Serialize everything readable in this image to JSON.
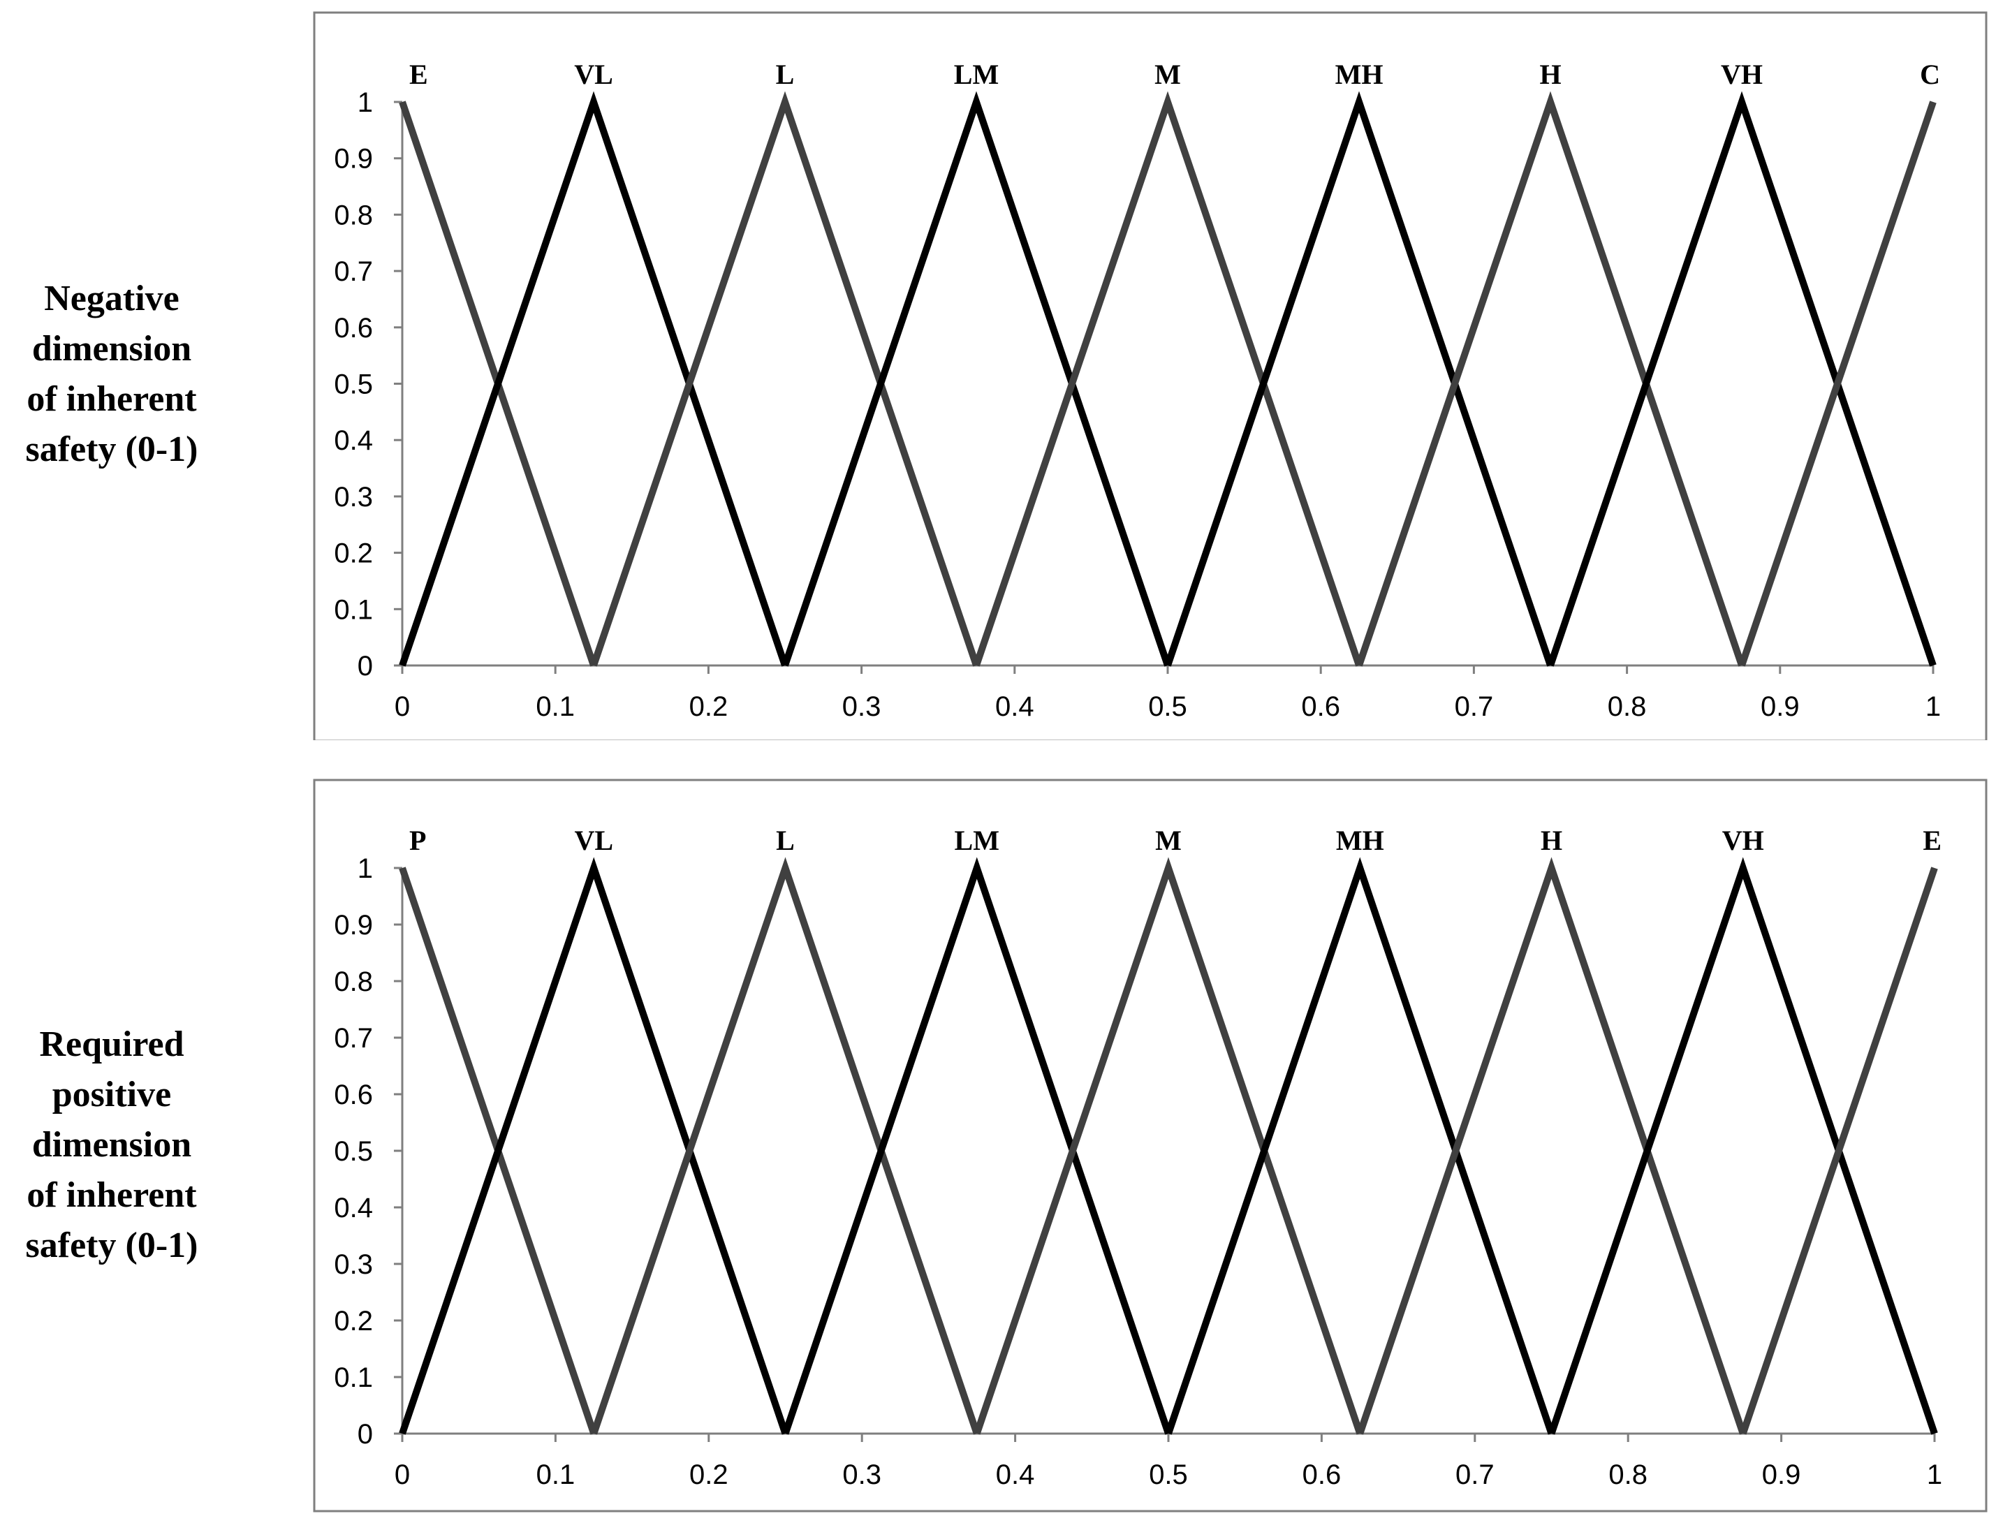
{
  "panels": [
    {
      "y_label_lines": [
        "Negative",
        "dimension",
        "of inherent",
        "safety (0-1)"
      ]
    },
    {
      "y_label_lines": [
        "Required",
        "positive",
        "dimension",
        "of inherent",
        "safety (0-1)"
      ]
    }
  ],
  "chart_data": [
    {
      "type": "line",
      "title": "",
      "xlabel": "",
      "ylabel": "Negative dimension of inherent safety (0-1)",
      "xlim": [
        0,
        1
      ],
      "ylim": [
        0,
        1
      ],
      "x_ticks": [
        "0",
        "0.1",
        "0.2",
        "0.3",
        "0.4",
        "0.5",
        "0.6",
        "0.7",
        "0.8",
        "0.9",
        "1"
      ],
      "x_tick_values": [
        0,
        0.1,
        0.2,
        0.3,
        0.4,
        0.5,
        0.6,
        0.7,
        0.8,
        0.9,
        1
      ],
      "y_ticks": [
        "0",
        "0.1",
        "0.2",
        "0.3",
        "0.4",
        "0.5",
        "0.6",
        "0.7",
        "0.8",
        "0.9",
        "1"
      ],
      "y_tick_values": [
        0,
        0.1,
        0.2,
        0.3,
        0.4,
        0.5,
        0.6,
        0.7,
        0.8,
        0.9,
        1
      ],
      "grid": false,
      "legend": "none",
      "series": [
        {
          "label": "E",
          "color": "#404040",
          "x": [
            0,
            0.125
          ],
          "y": [
            1,
            0
          ]
        },
        {
          "label": "VL",
          "color": "#000000",
          "x": [
            0,
            0.125,
            0.25
          ],
          "y": [
            0,
            1,
            0
          ]
        },
        {
          "label": "L",
          "color": "#404040",
          "x": [
            0.125,
            0.25,
            0.375
          ],
          "y": [
            0,
            1,
            0
          ]
        },
        {
          "label": "LM",
          "color": "#000000",
          "x": [
            0.25,
            0.375,
            0.5
          ],
          "y": [
            0,
            1,
            0
          ]
        },
        {
          "label": "M",
          "color": "#404040",
          "x": [
            0.375,
            0.5,
            0.625
          ],
          "y": [
            0,
            1,
            0
          ]
        },
        {
          "label": "MH",
          "color": "#000000",
          "x": [
            0.5,
            0.625,
            0.75
          ],
          "y": [
            0,
            1,
            0
          ]
        },
        {
          "label": "H",
          "color": "#404040",
          "x": [
            0.625,
            0.75,
            0.875
          ],
          "y": [
            0,
            1,
            0
          ]
        },
        {
          "label": "VH",
          "color": "#000000",
          "x": [
            0.75,
            0.875,
            1
          ],
          "y": [
            0,
            1,
            0
          ]
        },
        {
          "label": "C",
          "color": "#404040",
          "x": [
            0.875,
            1
          ],
          "y": [
            0,
            1
          ]
        }
      ]
    },
    {
      "type": "line",
      "title": "",
      "xlabel": "",
      "ylabel": "Required positive dimension of inherent safety (0-1)",
      "xlim": [
        0,
        1
      ],
      "ylim": [
        0,
        1
      ],
      "x_ticks": [
        "0",
        "0.1",
        "0.2",
        "0.3",
        "0.4",
        "0.5",
        "0.6",
        "0.7",
        "0.8",
        "0.9",
        "1"
      ],
      "x_tick_values": [
        0,
        0.1,
        0.2,
        0.3,
        0.4,
        0.5,
        0.6,
        0.7,
        0.8,
        0.9,
        1
      ],
      "y_ticks": [
        "0",
        "0.1",
        "0.2",
        "0.3",
        "0.4",
        "0.5",
        "0.6",
        "0.7",
        "0.8",
        "0.9",
        "1"
      ],
      "y_tick_values": [
        0,
        0.1,
        0.2,
        0.3,
        0.4,
        0.5,
        0.6,
        0.7,
        0.8,
        0.9,
        1
      ],
      "grid": false,
      "legend": "none",
      "series": [
        {
          "label": "P",
          "color": "#404040",
          "x": [
            0,
            0.125
          ],
          "y": [
            1,
            0
          ]
        },
        {
          "label": "VL",
          "color": "#000000",
          "x": [
            0,
            0.125,
            0.25
          ],
          "y": [
            0,
            1,
            0
          ]
        },
        {
          "label": "L",
          "color": "#404040",
          "x": [
            0.125,
            0.25,
            0.375
          ],
          "y": [
            0,
            1,
            0
          ]
        },
        {
          "label": "LM",
          "color": "#000000",
          "x": [
            0.25,
            0.375,
            0.5
          ],
          "y": [
            0,
            1,
            0
          ]
        },
        {
          "label": "M",
          "color": "#404040",
          "x": [
            0.375,
            0.5,
            0.625
          ],
          "y": [
            0,
            1,
            0
          ]
        },
        {
          "label": "MH",
          "color": "#000000",
          "x": [
            0.5,
            0.625,
            0.75
          ],
          "y": [
            0,
            1,
            0
          ]
        },
        {
          "label": "H",
          "color": "#404040",
          "x": [
            0.625,
            0.75,
            0.875
          ],
          "y": [
            0,
            1,
            0
          ]
        },
        {
          "label": "VH",
          "color": "#000000",
          "x": [
            0.75,
            0.875,
            1
          ],
          "y": [
            0,
            1,
            0
          ]
        },
        {
          "label": "E",
          "color": "#404040",
          "x": [
            0.875,
            1
          ],
          "y": [
            0,
            1
          ]
        }
      ]
    }
  ]
}
